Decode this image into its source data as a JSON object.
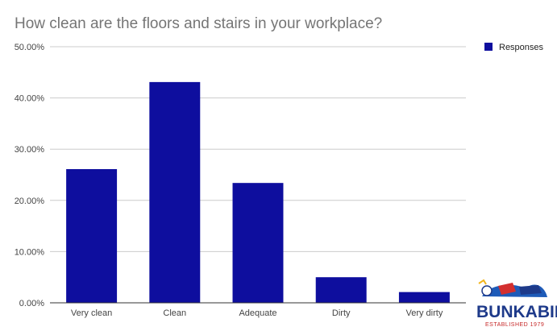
{
  "chart_data": {
    "type": "bar",
    "title": "How clean are the floors and stairs in your workplace?",
    "categories": [
      "Very clean",
      "Clean",
      "Adequate",
      "Dirty",
      "Very dirty"
    ],
    "series": [
      {
        "name": "Responses",
        "values": [
          26.1,
          43.1,
          23.4,
          5.0,
          2.1
        ]
      }
    ],
    "xlabel": "",
    "ylabel": "",
    "ylim": [
      0,
      50
    ],
    "yticks": [
      "0.00%",
      "10.00%",
      "20.00%",
      "30.00%",
      "40.00%",
      "50.00%"
    ],
    "grid": true,
    "legend_position": "right",
    "bar_color": "#0e0e9e"
  },
  "logo": {
    "name": "BUNKABIN",
    "tagline": "ESTABLISHED 1979"
  }
}
